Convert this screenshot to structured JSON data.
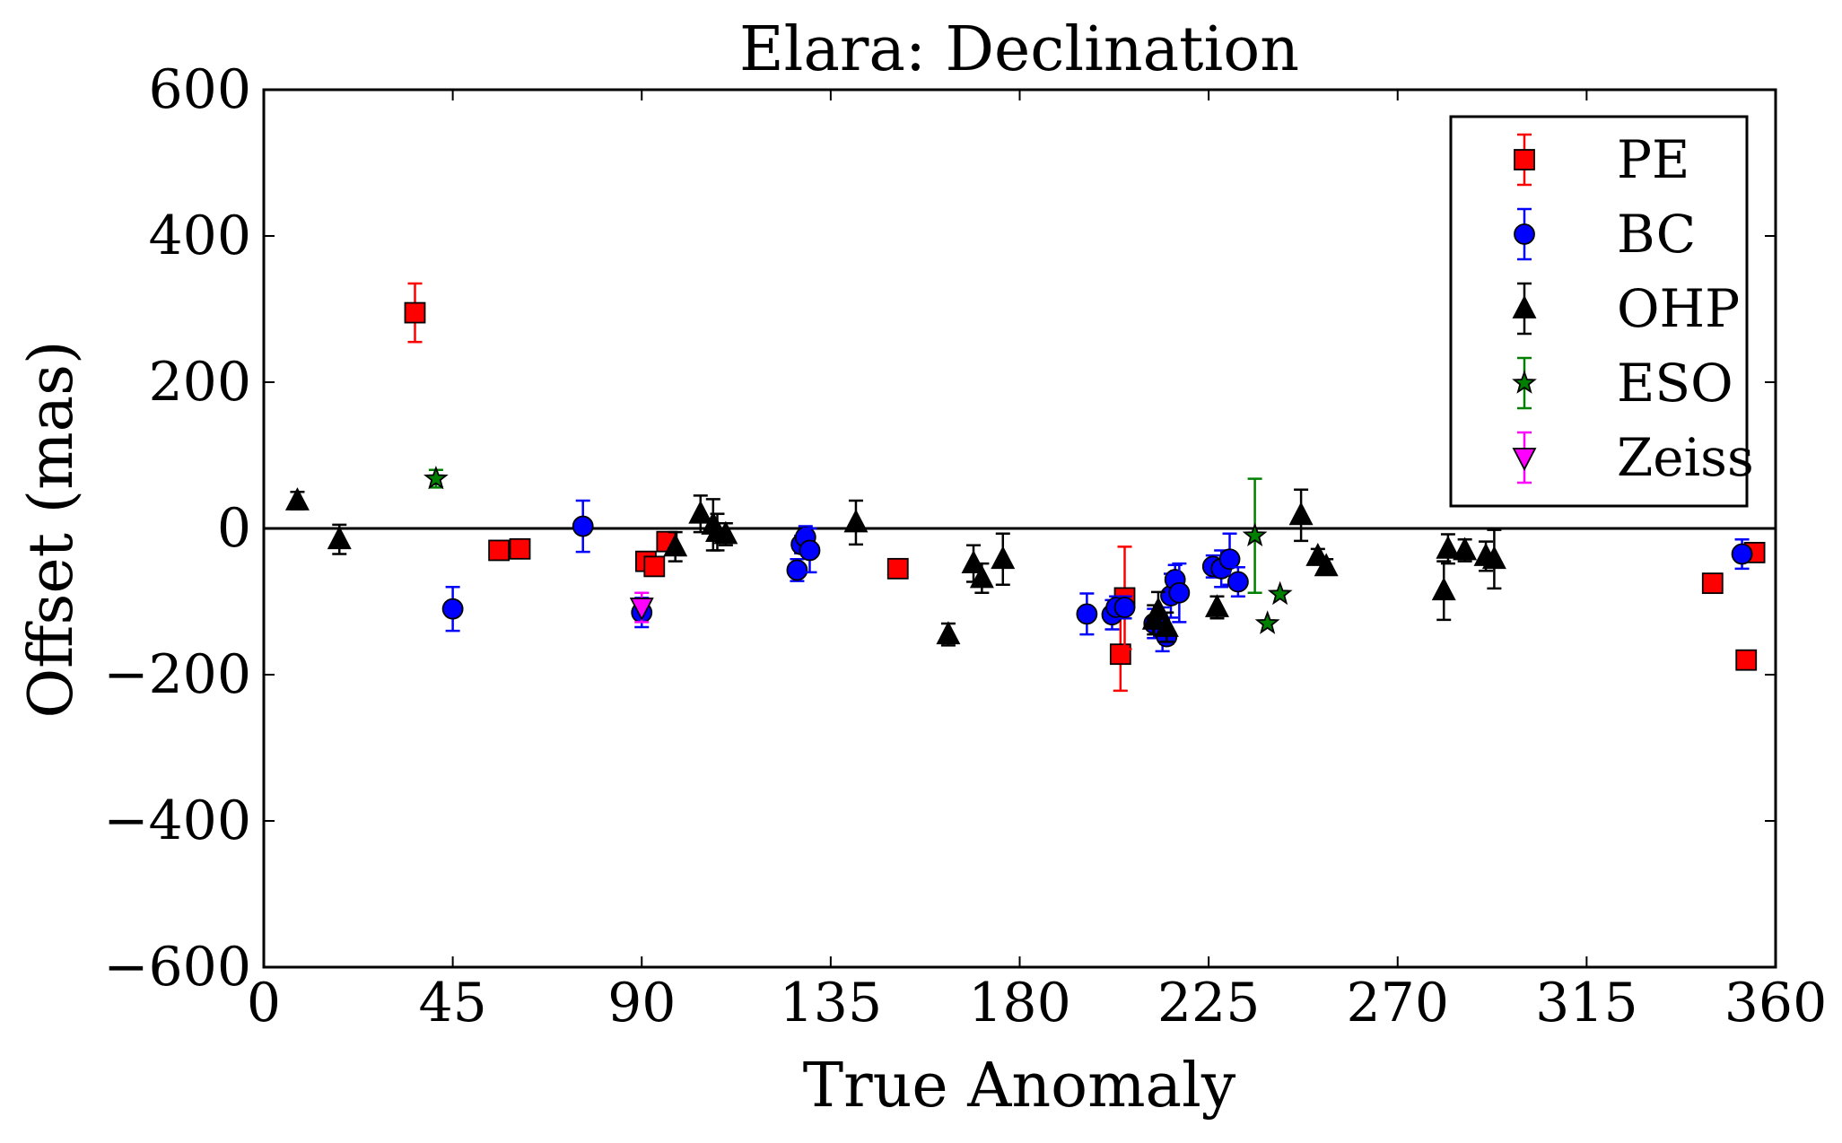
{
  "chart_data": {
    "type": "scatter",
    "title": "Elara: Declination",
    "xlabel": "True Anomaly",
    "ylabel": "Offset (mas)",
    "xlim": [
      0,
      360
    ],
    "ylim": [
      -600,
      600
    ],
    "xticks": [
      0,
      45,
      90,
      135,
      180,
      225,
      270,
      315,
      360
    ],
    "yticks": [
      -600,
      -400,
      -200,
      0,
      200,
      400,
      600
    ],
    "xtick_labels": [
      "0",
      "45",
      "90",
      "135",
      "180",
      "225",
      "270",
      "315",
      "360"
    ],
    "ytick_labels": [
      "−600",
      "−400",
      "−200",
      "0",
      "200",
      "400",
      "600"
    ],
    "zero_line": true,
    "grid": false,
    "legend_position": "top-right",
    "series": [
      {
        "name": "PE",
        "marker": "square",
        "color": "#ff0000",
        "errcolor": "#ff0000",
        "x": [
          36,
          56,
          61,
          91,
          93,
          96,
          151,
          204,
          205,
          345,
          353,
          355
        ],
        "y": [
          295,
          -30,
          -28,
          -45,
          -52,
          -18,
          -55,
          -172,
          -95,
          -75,
          -180,
          -33
        ],
        "err": [
          40,
          0,
          0,
          0,
          0,
          0,
          0,
          50,
          70,
          0,
          0,
          0
        ]
      },
      {
        "name": "BC",
        "marker": "circle",
        "color": "#0000ff",
        "errcolor": "#0000ff",
        "x": [
          45,
          76,
          90,
          127,
          128,
          129,
          130,
          196,
          202,
          203,
          205,
          212,
          214,
          215,
          216,
          217,
          218,
          226,
          228,
          230,
          232,
          352
        ],
        "y": [
          -110,
          3,
          -115,
          -57,
          -22,
          -12,
          -30,
          -117,
          -118,
          -108,
          -108,
          -130,
          -138,
          -148,
          -92,
          -70,
          -88,
          -52,
          -55,
          -42,
          -73,
          -35
        ],
        "err": [
          30,
          35,
          20,
          15,
          12,
          15,
          30,
          28,
          20,
          15,
          15,
          20,
          30,
          10,
          30,
          20,
          40,
          15,
          25,
          35,
          20,
          20
        ]
      },
      {
        "name": "OHP",
        "marker": "triangle-up",
        "color": "#000000",
        "errcolor": "#000000",
        "x": [
          8,
          18,
          98,
          104,
          107,
          108,
          110,
          141,
          163,
          169,
          171,
          176,
          212,
          213,
          215,
          227,
          247,
          251,
          253,
          281,
          282,
          286,
          291,
          293
        ],
        "y": [
          38,
          -15,
          -25,
          20,
          5,
          -5,
          -8,
          8,
          -145,
          -48,
          -68,
          -42,
          -125,
          -112,
          -135,
          -108,
          18,
          -38,
          -52,
          -85,
          -28,
          -30,
          -38,
          -42
        ],
        "err": [
          12,
          20,
          20,
          25,
          35,
          25,
          15,
          30,
          15,
          25,
          20,
          35,
          20,
          25,
          20,
          15,
          35,
          10,
          10,
          40,
          20,
          15,
          20,
          40
        ]
      },
      {
        "name": "ESO",
        "marker": "star",
        "color": "#008000",
        "errcolor": "#008000",
        "x": [
          41,
          236,
          239,
          242
        ],
        "y": [
          68,
          -10,
          -130,
          -90
        ],
        "err": [
          12,
          78,
          0,
          0
        ]
      },
      {
        "name": "Zeiss",
        "marker": "triangle-down",
        "color": "#ff00ff",
        "errcolor": "#ff00ff",
        "x": [
          90
        ],
        "y": [
          -108
        ],
        "err": [
          20
        ]
      }
    ]
  }
}
